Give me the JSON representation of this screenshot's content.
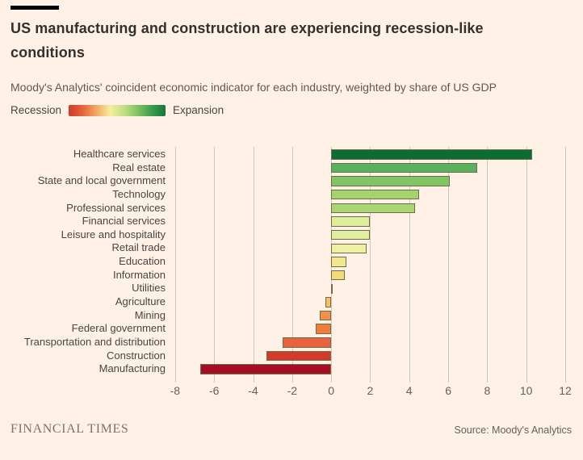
{
  "header": {
    "title": "US manufacturing and construction are experiencing recession-like conditions",
    "subtitle": "Moody's Analytics' coincident economic indicator for each industry, weighted by share of US GDP"
  },
  "legend": {
    "left_label": "Recession",
    "right_label": "Expansion",
    "gradient_colors": [
      "#cc3a2b",
      "#e4643a",
      "#f3a865",
      "#f4ee9e",
      "#bfe083",
      "#7fc363",
      "#3c9c4e",
      "#15763a"
    ]
  },
  "chart_data": {
    "type": "bar",
    "orientation": "horizontal",
    "title": "US manufacturing and construction are experiencing recession-like conditions",
    "subtitle": "Moody's Analytics' coincident economic indicator for each industry, weighted by share of US GDP",
    "categories": [
      "Healthcare services",
      "Real estate",
      "State and local government",
      "Technology",
      "Professional services",
      "Financial services",
      "Leisure and hospitality",
      "Retail trade",
      "Education",
      "Information",
      "Utilities",
      "Agriculture",
      "Mining",
      "Federal government",
      "Transportation and distribution",
      "Construction",
      "Manufacturing"
    ],
    "values": [
      10.3,
      7.5,
      6.1,
      4.5,
      4.3,
      2.0,
      2.0,
      1.8,
      0.8,
      0.7,
      0.1,
      -0.3,
      -0.6,
      -0.8,
      -2.5,
      -3.3,
      -6.7
    ],
    "bar_colors": [
      "#0b6d33",
      "#57b15d",
      "#80c464",
      "#a5d46f",
      "#a9d672",
      "#dfee9d",
      "#e1ee9f",
      "#eef0a3",
      "#f3e78d",
      "#f4da79",
      "#8a8266",
      "#f8bf67",
      "#f29147",
      "#ef7d3a",
      "#e9613d",
      "#d23b29",
      "#a50d24"
    ],
    "x_ticks": [
      -8,
      -6,
      -4,
      -2,
      0,
      2,
      4,
      6,
      8,
      10,
      12
    ],
    "xlim": [
      -8.2,
      12.33
    ],
    "grid": true,
    "legend_position": "top-left"
  },
  "footer": {
    "brand": "FINANCIAL TIMES",
    "source": "Source: Moody's Analytics"
  },
  "colors": {
    "background": "#FFF1E5",
    "accent_bar": "#000000",
    "gridline": "#d2c5b9",
    "bar_border": "#6d6d49",
    "title_text": "#33302e",
    "muted_text": "#66605b"
  }
}
